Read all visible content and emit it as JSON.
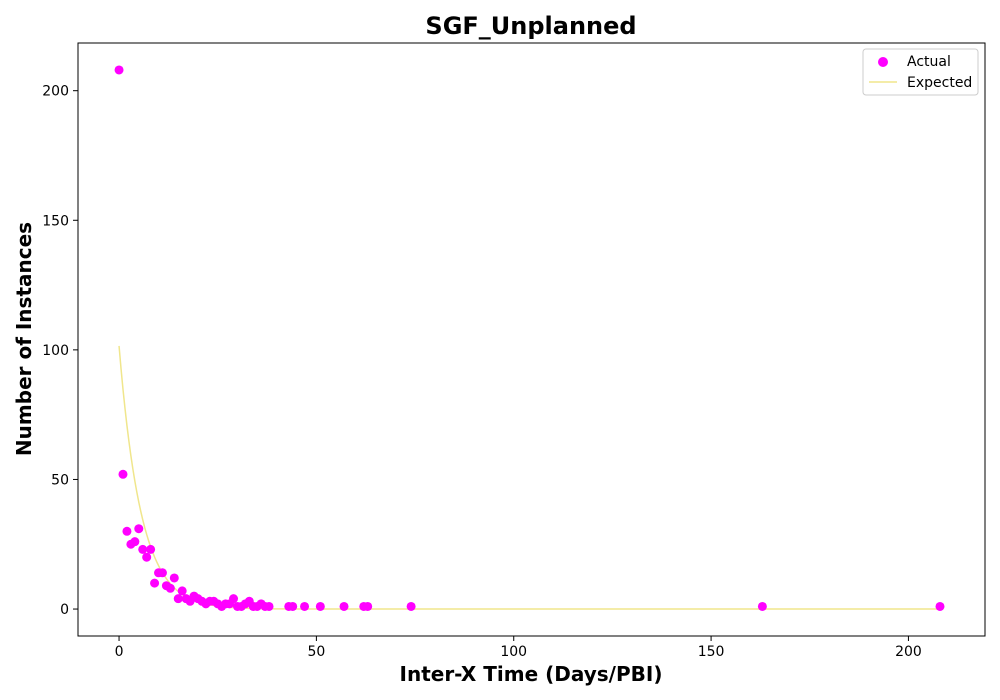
{
  "chart_data": {
    "type": "scatter",
    "title": "SGF_Unplanned",
    "xlabel": "Inter-X Time (Days/PBI)",
    "ylabel": "Number of Instances",
    "xlim": [
      -10.4,
      219.4
    ],
    "ylim": [
      -10.4,
      218.4
    ],
    "xticks": [
      0,
      50,
      100,
      150,
      200
    ],
    "yticks": [
      0,
      50,
      100,
      150,
      200
    ],
    "grid": false,
    "legend_position": "top-right",
    "colors": {
      "actual": "#ff00ff",
      "expected": "#f0e68c"
    },
    "series": [
      {
        "name": "Actual",
        "kind": "scatter",
        "points": [
          [
            0,
            208
          ],
          [
            1,
            52
          ],
          [
            2,
            30
          ],
          [
            3,
            25
          ],
          [
            4,
            26
          ],
          [
            5,
            31
          ],
          [
            6,
            23
          ],
          [
            7,
            20
          ],
          [
            8,
            23
          ],
          [
            9,
            10
          ],
          [
            10,
            14
          ],
          [
            11,
            14
          ],
          [
            12,
            9
          ],
          [
            13,
            8
          ],
          [
            14,
            12
          ],
          [
            15,
            4
          ],
          [
            16,
            7
          ],
          [
            17,
            4
          ],
          [
            18,
            3
          ],
          [
            19,
            5
          ],
          [
            20,
            4
          ],
          [
            21,
            3
          ],
          [
            22,
            2
          ],
          [
            23,
            3
          ],
          [
            24,
            3
          ],
          [
            25,
            2
          ],
          [
            26,
            1
          ],
          [
            27,
            2
          ],
          [
            28,
            2
          ],
          [
            29,
            4
          ],
          [
            30,
            1
          ],
          [
            31,
            1
          ],
          [
            32,
            2
          ],
          [
            33,
            3
          ],
          [
            34,
            1
          ],
          [
            35,
            1
          ],
          [
            36,
            2
          ],
          [
            37,
            1
          ],
          [
            38,
            1
          ],
          [
            43,
            1
          ],
          [
            44,
            1
          ],
          [
            47,
            1
          ],
          [
            51,
            1
          ],
          [
            57,
            1
          ],
          [
            62,
            1
          ],
          [
            63,
            1
          ],
          [
            74,
            1
          ],
          [
            163,
            1
          ],
          [
            208,
            1
          ]
        ]
      },
      {
        "name": "Expected",
        "kind": "line",
        "model": {
          "a": 101.5,
          "k": 0.18
        },
        "x_range": [
          0,
          208
        ]
      }
    ]
  }
}
